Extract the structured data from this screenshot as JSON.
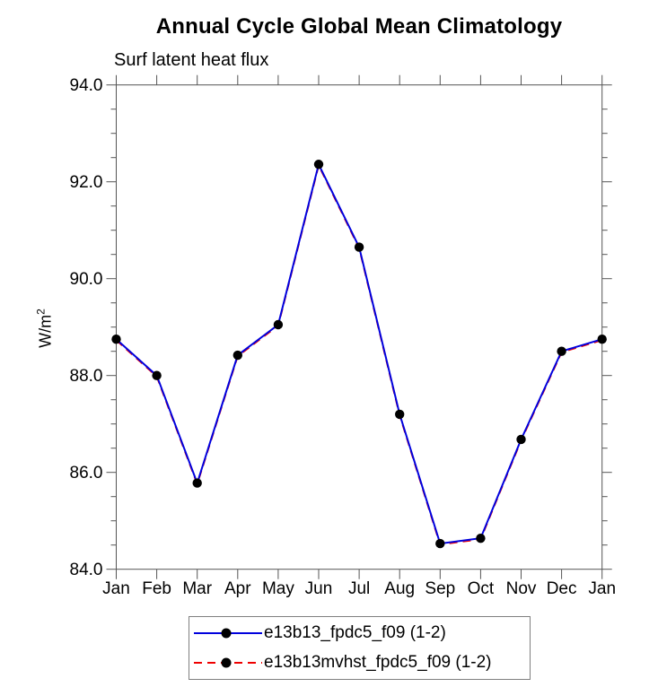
{
  "header": {
    "title": "Annual Cycle Global Mean Climatology",
    "subtitle": "Surf latent heat flux"
  },
  "chart_data": {
    "type": "line",
    "title": "Annual Cycle Global Mean Climatology",
    "subtitle": "Surf latent heat flux",
    "ylabel_base": "W/m",
    "ylabel_exponent": "2",
    "categories": [
      "Jan",
      "Feb",
      "Mar",
      "Apr",
      "May",
      "Jun",
      "Jul",
      "Aug",
      "Sep",
      "Oct",
      "Nov",
      "Dec",
      "Jan"
    ],
    "series": [
      {
        "name": "e13b13_fpdc5_f09 (1-2)",
        "color": "#0000dd",
        "style": "solid",
        "marker": "filled-circle",
        "marker_color": "#000000",
        "values": [
          88.75,
          88.0,
          85.78,
          88.42,
          89.05,
          92.36,
          90.65,
          87.2,
          84.53,
          84.64,
          86.68,
          88.5,
          88.75
        ]
      },
      {
        "name": "e13b13mvhst_fpdc5_f09 (1-2)",
        "color": "#ee0000",
        "style": "dashed",
        "marker": "filled-circle",
        "marker_color": "#000000",
        "values": [
          88.75,
          88.0,
          85.78,
          88.42,
          89.05,
          92.36,
          90.65,
          87.2,
          84.53,
          84.64,
          86.68,
          88.5,
          88.75
        ]
      }
    ],
    "ylim": [
      84.0,
      94.0
    ],
    "yticks_major": [
      94.0,
      92.0,
      90.0,
      88.0,
      86.0,
      84.0
    ],
    "ytick_labels": [
      "94.0",
      "92.0",
      "90.0",
      "88.0",
      "86.0",
      "84.0"
    ],
    "minor_tick_interval": 0.5,
    "grid": false,
    "axis_color": "#555555",
    "legend_position": "bottom"
  }
}
